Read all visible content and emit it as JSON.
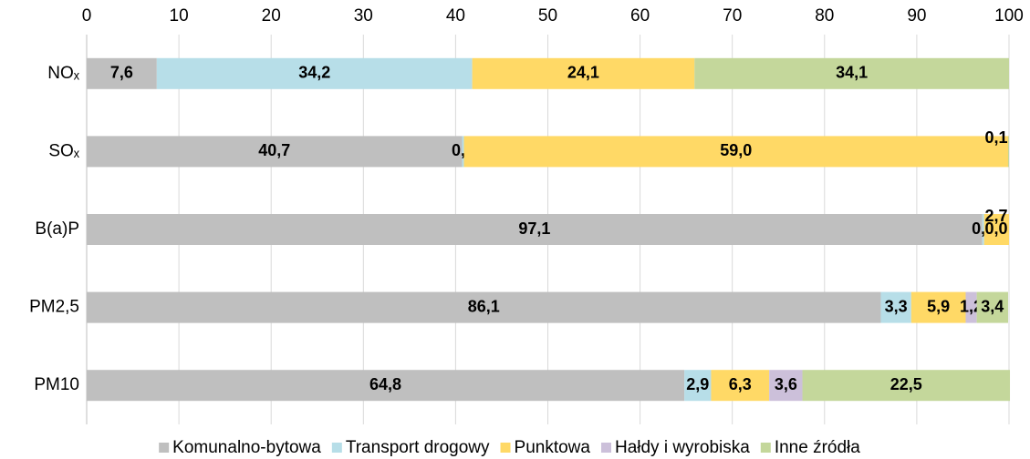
{
  "chart_data": {
    "type": "stacked-bar-horizontal",
    "categories": [
      "NOₓ",
      "SOₓ",
      "B(a)P",
      "PM2,5",
      "PM10"
    ],
    "series": [
      {
        "name": "Komunalno-bytowa",
        "color": "#bfbfbf",
        "values": [
          7.6,
          40.7,
          97.1,
          86.1,
          64.8
        ],
        "value_labels": [
          "7,6",
          "40,7",
          "97,1",
          "86,1",
          "64,8"
        ]
      },
      {
        "name": "Transport drogowy",
        "color": "#b7dee8",
        "values": [
          34.2,
          0.2,
          0.2,
          3.3,
          2.9
        ],
        "value_labels": [
          "34,2",
          "0,2",
          "0,2",
          "3,3",
          "2,9"
        ]
      },
      {
        "name": "Punktowa",
        "color": "#ffd966",
        "values": [
          24.1,
          59.0,
          2.7,
          5.9,
          6.3
        ],
        "value_labels": [
          "24,1",
          "59,0",
          "2,7",
          "5,9",
          "6,3"
        ]
      },
      {
        "name": "Hałdy i wyrobiska",
        "color": "#ccc0da",
        "values": [
          null,
          null,
          null,
          1.2,
          3.6
        ],
        "value_labels": [
          null,
          null,
          null,
          "1,2",
          "3,6"
        ]
      },
      {
        "name": "Inne źródła",
        "color": "#c4d79b",
        "values": [
          34.1,
          0.1,
          0.0,
          3.4,
          22.5
        ],
        "value_labels": [
          "34,1",
          "0,1",
          "0,0",
          "3,4",
          "22,5"
        ]
      }
    ],
    "xlim": [
      0,
      100
    ],
    "xticks": [
      0,
      10,
      20,
      30,
      40,
      50,
      60,
      70,
      80,
      90,
      100
    ],
    "grid": true,
    "legend": "bottom"
  }
}
